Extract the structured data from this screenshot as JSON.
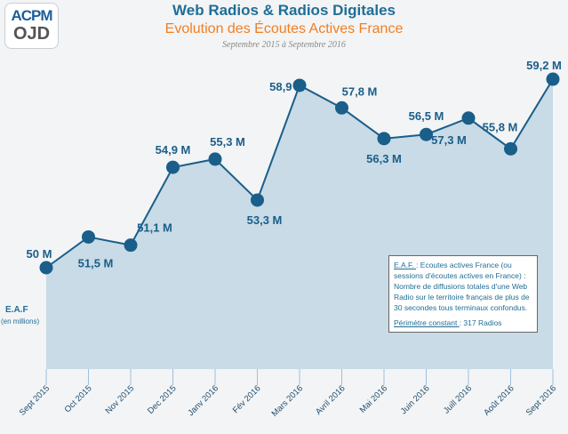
{
  "logo": {
    "line1": "ACPM",
    "line2": "OJD"
  },
  "header": {
    "title": "Web Radios & Radios Digitales",
    "subtitle": "Evolution des Écoutes Actives France",
    "period": "Septembre 2015 à Septembre 2016"
  },
  "axis_label": {
    "main": "E.A.F",
    "unit": "(en millions)"
  },
  "note": {
    "term": "E.A.F. ",
    "definition": ": Ecoutes actives France (ou sessions d'écoutes actives en France) : Nombre de diffusions totales d'une Web Radio sur le territoire français de plus de 30 secondes tous terminaux confondus.",
    "perimeter_label": "Périmètre constant ",
    "perimeter_value": ": 317 Radios"
  },
  "colors": {
    "line": "#1a5e8a",
    "area": "#c8dbe6",
    "title": "#1f6e96",
    "subtitle": "#f07f22"
  },
  "chart_data": {
    "type": "area",
    "title": "Web Radios & Radios Digitales",
    "categories": [
      "Sept 2015",
      "Oct 2015",
      "Nov 2015",
      "Dec 2015",
      "Janv 2016",
      "Fév 2016",
      "Mars 2016",
      "Avril 2016",
      "Mai 2016",
      "Juin 2016",
      "Juill 2016",
      "Août 2016",
      "Sept 2016"
    ],
    "values": [
      50,
      51.5,
      51.1,
      54.9,
      55.3,
      53.3,
      58.9,
      57.8,
      56.3,
      56.5,
      57.3,
      55.8,
      59.2
    ],
    "labels": [
      "50 M",
      "51,5 M",
      "51,1 M",
      "54,9 M",
      "55,3 M",
      "53,3 M",
      "58,9 M",
      "57,8 M",
      "56,3 M",
      "56,5 M",
      "57,3 M",
      "55,8 M",
      "59,2 M"
    ],
    "ylabel": "E.A.F (en millions)",
    "grid": false
  }
}
